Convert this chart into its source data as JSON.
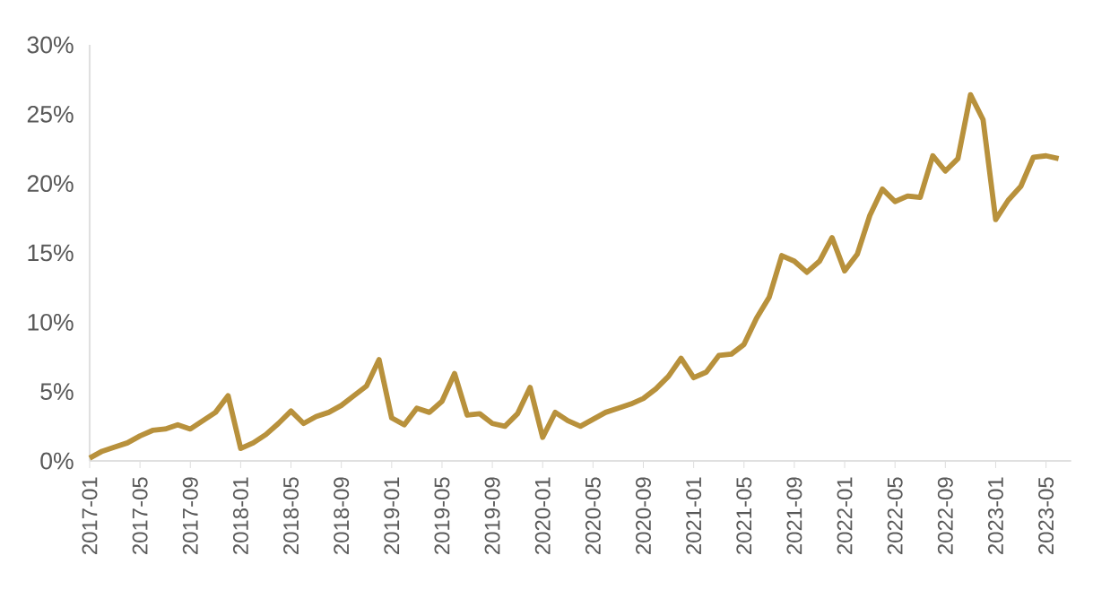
{
  "chart_data": {
    "type": "line",
    "x": [
      "2017-01",
      "2017-02",
      "2017-03",
      "2017-04",
      "2017-05",
      "2017-06",
      "2017-07",
      "2017-08",
      "2017-09",
      "2017-10",
      "2017-11",
      "2017-12",
      "2018-01",
      "2018-02",
      "2018-03",
      "2018-04",
      "2018-05",
      "2018-06",
      "2018-07",
      "2018-08",
      "2018-09",
      "2018-10",
      "2018-11",
      "2018-12",
      "2019-01",
      "2019-02",
      "2019-03",
      "2019-04",
      "2019-05",
      "2019-06",
      "2019-07",
      "2019-08",
      "2019-09",
      "2019-10",
      "2019-11",
      "2019-12",
      "2020-01",
      "2020-02",
      "2020-03",
      "2020-04",
      "2020-05",
      "2020-06",
      "2020-07",
      "2020-08",
      "2020-09",
      "2020-10",
      "2020-11",
      "2020-12",
      "2021-01",
      "2021-02",
      "2021-03",
      "2021-04",
      "2021-05",
      "2021-06",
      "2021-07",
      "2021-08",
      "2021-09",
      "2021-10",
      "2021-11",
      "2021-12",
      "2022-01",
      "2022-02",
      "2022-03",
      "2022-04",
      "2022-05",
      "2022-06",
      "2022-07",
      "2022-08",
      "2022-09",
      "2022-10",
      "2022-11",
      "2022-12",
      "2023-01",
      "2023-02",
      "2023-03",
      "2023-04",
      "2023-05",
      "2023-06"
    ],
    "series": [
      {
        "color": "#b8913c",
        "values": [
          0.2,
          0.7,
          1.0,
          1.3,
          1.8,
          2.2,
          2.3,
          2.6,
          2.3,
          2.9,
          3.5,
          4.7,
          0.9,
          1.3,
          1.9,
          2.7,
          3.6,
          2.7,
          3.2,
          3.5,
          4.0,
          4.7,
          5.4,
          7.3,
          3.1,
          2.6,
          3.8,
          3.5,
          4.3,
          6.3,
          3.3,
          3.4,
          2.7,
          2.5,
          3.4,
          5.3,
          1.7,
          3.5,
          2.9,
          2.5,
          3.0,
          3.5,
          3.8,
          4.1,
          4.5,
          5.2,
          6.1,
          7.4,
          6.0,
          6.4,
          7.6,
          7.7,
          8.4,
          10.3,
          11.8,
          14.8,
          14.4,
          13.6,
          14.4,
          16.1,
          13.7,
          14.9,
          17.7,
          19.6,
          18.7,
          19.1,
          19.0,
          22.0,
          20.9,
          21.8,
          26.4,
          24.6,
          17.4,
          18.8,
          19.8,
          21.9,
          22.0,
          21.8
        ]
      }
    ],
    "xlim": [
      "2017-01",
      "2023-07"
    ],
    "xticks": [
      "2017-01",
      "2017-05",
      "2017-09",
      "2018-01",
      "2018-05",
      "2018-09",
      "2019-01",
      "2019-05",
      "2019-09",
      "2020-01",
      "2020-05",
      "2020-09",
      "2021-01",
      "2021-05",
      "2021-09",
      "2022-01",
      "2022-05",
      "2022-09",
      "2023-01",
      "2023-05"
    ],
    "ylim": [
      0,
      30
    ],
    "yticks": [
      {
        "value": 0,
        "label": "0%"
      },
      {
        "value": 5,
        "label": "5%"
      },
      {
        "value": 10,
        "label": "10%"
      },
      {
        "value": 15,
        "label": "15%"
      },
      {
        "value": 20,
        "label": "20%"
      },
      {
        "value": 25,
        "label": "25%"
      },
      {
        "value": 30,
        "label": "30%"
      }
    ]
  }
}
